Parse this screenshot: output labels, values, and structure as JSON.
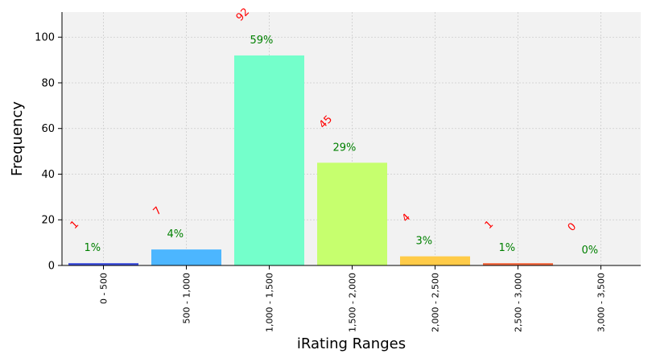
{
  "chart_data": {
    "type": "bar",
    "title": "",
    "xlabel": "iRating Ranges",
    "ylabel": "Frequency",
    "ylim": [
      0,
      111
    ],
    "yticks": [
      0,
      20,
      40,
      60,
      80,
      100
    ],
    "grid": true,
    "categories": [
      "0 - 500",
      "500 - 1,000",
      "1,000 - 1,500",
      "1,500 - 2,000",
      "2,000 - 2,500",
      "2,500 - 3,000",
      "3,000 - 3,500"
    ],
    "values": [
      1,
      7,
      92,
      45,
      4,
      1,
      0
    ],
    "count_labels": [
      "1",
      "7",
      "92",
      "45",
      "4",
      "1",
      "0"
    ],
    "percent_labels": [
      "1%",
      "4%",
      "59%",
      "29%",
      "3%",
      "1%",
      "0%"
    ],
    "colors": [
      "#3b4cdb",
      "#4cb6ff",
      "#74ffcb",
      "#c6ff6e",
      "#ffcb48",
      "#f2663c",
      "#c21e12"
    ],
    "plot_background": "#f2f2f2"
  }
}
